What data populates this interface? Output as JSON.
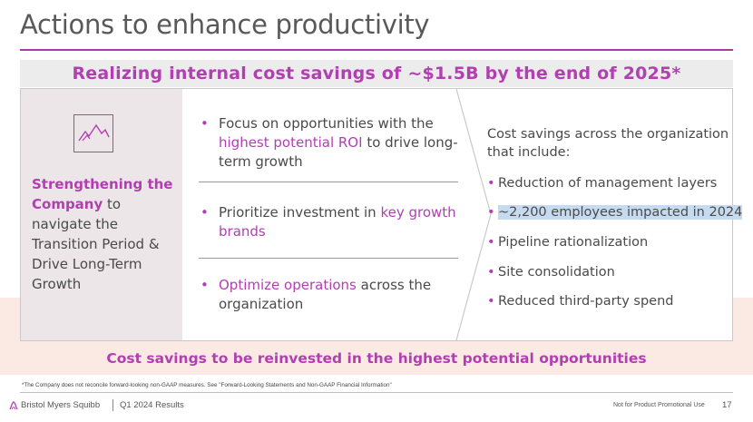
{
  "title": "Actions to enhance productivity",
  "banner": "Realizing internal cost savings of ~$1.5B by the end of 2025*",
  "left": {
    "icon": "mountain-peaks-icon",
    "highlight": "Strengthening the Company",
    "rest": " to navigate the Transition Period & Drive Long-Term Growth"
  },
  "middle": {
    "items": [
      {
        "pre": "Focus on opportunities with the ",
        "hl": "highest potential ROI",
        "post": " to drive long-term growth"
      },
      {
        "pre": "Prioritize investment in ",
        "hl": "key growth brands",
        "post": ""
      },
      {
        "pre": "",
        "hl": "Optimize operations",
        "post": " across the organization"
      }
    ]
  },
  "right": {
    "intro": "Cost savings across the organization that include:",
    "items": [
      "Reduction of management layers",
      "~2,200 employees impacted in 2024",
      "Pipeline rationalization",
      "Site consolidation",
      "Reduced third-party spend"
    ]
  },
  "bottom_banner": "Cost savings to be reinvested in the highest potential opportunities",
  "footnote": "*The Company does not reconcile forward-looking non-GAAP measures. See \"Forward-Looking Statements and Non-GAAP Financial Information\"",
  "footer": {
    "brand": "Bristol Myers Squibb",
    "report": "Q1 2024 Results",
    "promo": "Not for Product Promotional Use",
    "page": "17"
  },
  "colors": {
    "accent": "#b23fb1",
    "highlight_bg": "#c7dbf0",
    "left_panel_bg": "#ece6e9",
    "peach_band": "#fbeae3"
  }
}
